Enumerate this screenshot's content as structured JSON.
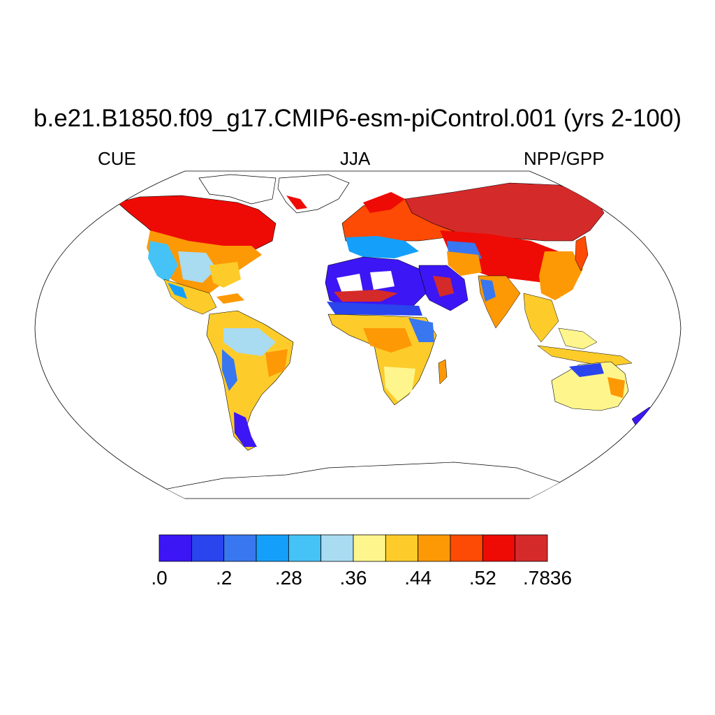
{
  "title": "b.e21.B1850.f09_g17.CMIP6-esm-piControl.001 (yrs 2-100)",
  "left_label": "CUE",
  "center_label": "JJA",
  "right_label": "NPP/GPP",
  "colorbar": {
    "colors": [
      "#3d16f5",
      "#2a44ee",
      "#3877f0",
      "#14a0fa",
      "#45c2f6",
      "#a9dbf1",
      "#fef68c",
      "#fdcc2a",
      "#fd9905",
      "#fd4a05",
      "#ee0b05",
      "#d52a2a"
    ],
    "tick_labels": [
      ".0",
      ".2",
      ".28",
      ".36",
      ".44",
      ".52",
      ".7836"
    ]
  },
  "map": {
    "projection": "robinson",
    "ocean_color": "#ffffff",
    "coastline_color": "#000000"
  }
}
